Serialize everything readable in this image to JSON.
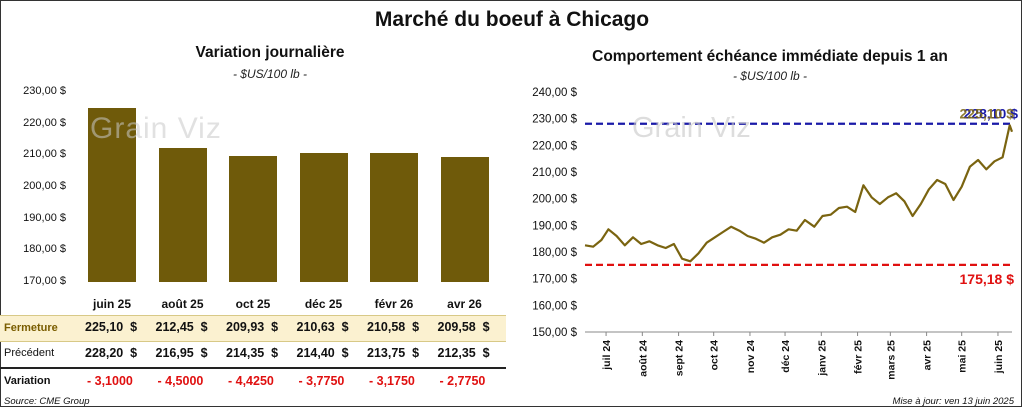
{
  "main_title": "Marché du boeuf à Chicago",
  "left_chart": {
    "title": "Variation journalière",
    "unit": "- $US/100 lb -",
    "yticks": [
      "230,00 $",
      "220,00 $",
      "210,00 $",
      "200,00 $",
      "190,00 $",
      "180,00 $",
      "170,00 $"
    ],
    "watermark": "Grain Viz"
  },
  "right_chart": {
    "title": "Comportement échéance immédiate depuis 1 an",
    "unit": "- $US/100 lb -",
    "yticks": [
      "240,00 $",
      "230,00 $",
      "220,00 $",
      "210,00 $",
      "200,00 $",
      "190,00 $",
      "180,00 $",
      "170,00 $",
      "160,00 $",
      "150,00 $"
    ],
    "xticks": [
      "juil 24",
      "août 24",
      "sept 24",
      "oct 24",
      "nov 24",
      "déc 24",
      "janv 25",
      "févr 25",
      "mars 25",
      "avr 25",
      "mai 25",
      "juin 25"
    ],
    "high_label": "228,10 $",
    "high_label_overlap": "225,10 $",
    "low_label": "175,18 $",
    "watermark": "Grain Viz",
    "high_color": "#1a1aa8",
    "low_color": "#e01010",
    "line_color": "#7a6410"
  },
  "table": {
    "fermeture_label": "Fermeture",
    "precedent_label": "Précédent",
    "variation_label": "Variation",
    "fermeture": [
      "225,10  $",
      "212,45  $",
      "209,93  $",
      "210,63  $",
      "210,58  $",
      "209,58  $"
    ],
    "precedent": [
      "228,20  $",
      "216,95  $",
      "214,35  $",
      "214,40  $",
      "213,75  $",
      "212,35  $"
    ],
    "variation": [
      "- 3,1000",
      "- 4,5000",
      "- 4,4250",
      "- 3,7750",
      "- 3,1750",
      "- 2,7750"
    ]
  },
  "footer": {
    "source": "Source: CME Group",
    "updated": "Mise à jour: ven 13 juin 2025"
  },
  "chart_data": [
    {
      "type": "bar",
      "title": "Variation journalière",
      "ylabel": "$US/100 lb",
      "categories": [
        "juin 25",
        "août 25",
        "oct 25",
        "déc 25",
        "févr 26",
        "avr 26"
      ],
      "values": [
        225.1,
        212.45,
        209.93,
        210.63,
        210.58,
        209.58
      ],
      "ylim": [
        170,
        230
      ],
      "bar_color": "#6f5a0a"
    },
    {
      "type": "line",
      "title": "Comportement échéance immédiate depuis 1 an",
      "ylabel": "$US/100 lb",
      "ylim": [
        150,
        240
      ],
      "x": [
        "2024-06-13",
        "2024-06-20",
        "2024-06-27",
        "2024-07-03",
        "2024-07-10",
        "2024-07-17",
        "2024-07-24",
        "2024-07-31",
        "2024-08-07",
        "2024-08-14",
        "2024-08-21",
        "2024-08-28",
        "2024-09-04",
        "2024-09-11",
        "2024-09-18",
        "2024-09-25",
        "2024-10-02",
        "2024-10-09",
        "2024-10-16",
        "2024-10-23",
        "2024-10-30",
        "2024-11-06",
        "2024-11-13",
        "2024-11-20",
        "2024-11-27",
        "2024-12-04",
        "2024-12-11",
        "2024-12-18",
        "2024-12-26",
        "2025-01-02",
        "2025-01-09",
        "2025-01-16",
        "2025-01-23",
        "2025-01-30",
        "2025-02-06",
        "2025-02-13",
        "2025-02-20",
        "2025-02-27",
        "2025-03-06",
        "2025-03-13",
        "2025-03-20",
        "2025-03-27",
        "2025-04-03",
        "2025-04-10",
        "2025-04-17",
        "2025-04-24",
        "2025-05-01",
        "2025-05-08",
        "2025-05-15",
        "2025-05-22",
        "2025-05-29",
        "2025-06-05",
        "2025-06-11",
        "2025-06-13"
      ],
      "series": [
        {
          "values": [
            182.5,
            182.0,
            184.5,
            188.5,
            186.0,
            182.5,
            185.5,
            183.0,
            184.0,
            182.5,
            181.5,
            183.0,
            177.5,
            176.5,
            179.5,
            183.5,
            185.5,
            187.5,
            189.5,
            188.0,
            186.0,
            185.0,
            183.5,
            185.5,
            186.5,
            188.5,
            188.0,
            192.0,
            189.5,
            193.5,
            194.0,
            196.5,
            197.0,
            195.0,
            205.0,
            200.5,
            198.0,
            200.5,
            202.0,
            199.0,
            193.5,
            198.0,
            203.5,
            207.0,
            205.5,
            199.5,
            204.5,
            212.0,
            214.5,
            211.0,
            214.0,
            215.5,
            227.5,
            225.1
          ]
        }
      ],
      "hlines": [
        {
          "value": 228.1,
          "label": "228,10 $",
          "color": "#1a1aa8",
          "style": "dashed"
        },
        {
          "value": 175.18,
          "label": "175,18 $",
          "color": "#e01010",
          "style": "dashed"
        }
      ],
      "grid": false
    }
  ]
}
